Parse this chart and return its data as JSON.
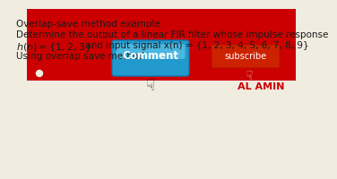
{
  "bg_color": "#f0ece0",
  "title_line": "Overlap-save method example",
  "line2": "Determine the output of a linear FIR filter whose impulse response",
  "line3_math": "h(n) = {1, 2, 3}",
  "line3_rest": " and input signal x(n) = {1, 2, 3, 4, 5, 6, 7, 8, 9}",
  "line4": "Using overlap save method.",
  "watermark": "AL AMIN",
  "watermark_color": "#cc0000",
  "text_color": "#1a1a1a",
  "fontsize": 7.5,
  "like_color": "#cc0000",
  "comment_color_top": "#55aadd",
  "comment_color_main": "#2299cc",
  "subscribe_color": "#cc2200",
  "subscribe_text": "subscribe",
  "comment_text": "Comment"
}
